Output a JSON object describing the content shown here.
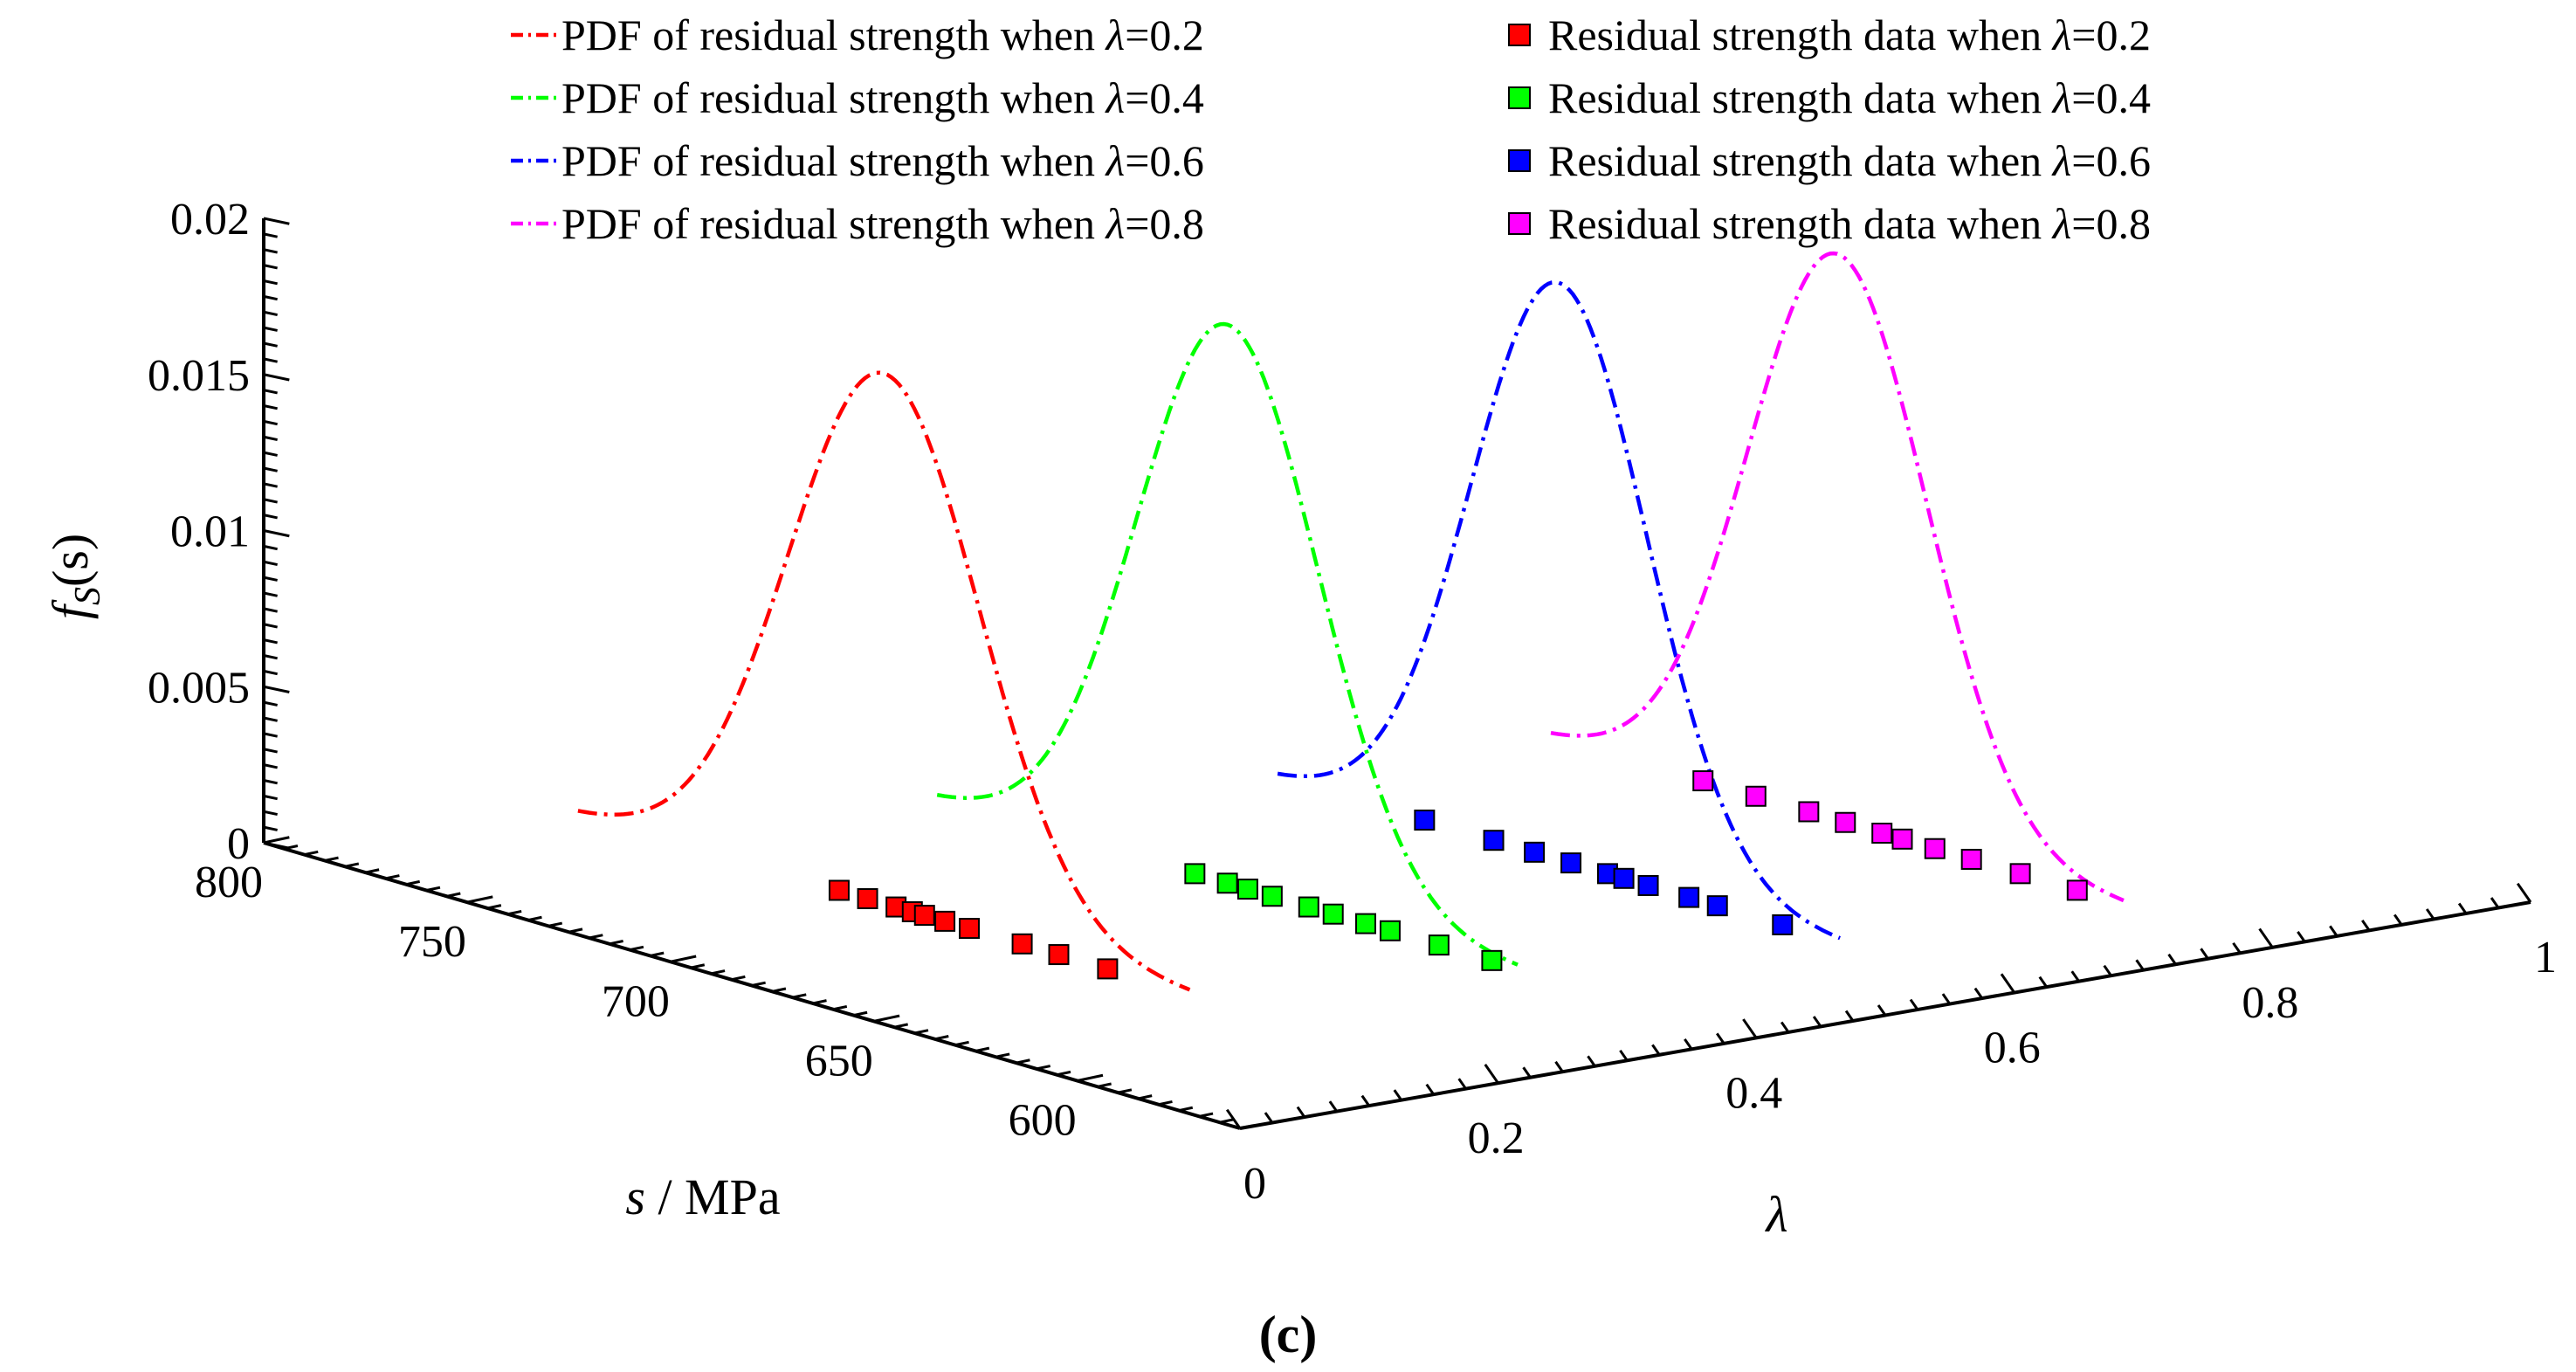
{
  "chart_data": {
    "type": "line",
    "view": "3d",
    "caption": "(c)",
    "axes": {
      "x": {
        "label_italic": "λ",
        "label_rest": "",
        "range": [
          0,
          1
        ],
        "ticks": [
          0,
          0.2,
          0.4,
          0.6,
          0.8,
          1
        ],
        "tick_labels": [
          "0",
          "0.2",
          "0.4",
          "0.6",
          "0.8",
          "1"
        ]
      },
      "y": {
        "label_italic": "s",
        "label_rest": " / MPa",
        "range": [
          560,
          800
        ],
        "ticks": [
          600,
          650,
          700,
          750,
          800
        ],
        "tick_labels": [
          "600",
          "650",
          "700",
          "750",
          "800"
        ]
      },
      "z": {
        "label_f": "f",
        "label_sub": "S",
        "label_rest": "(s)",
        "range": [
          0,
          0.02
        ],
        "ticks": [
          0,
          0.005,
          0.01,
          0.015,
          0.02
        ],
        "tick_labels": [
          "0",
          "0.005",
          "0.01",
          "0.015",
          "0.02"
        ]
      }
    },
    "legend": {
      "position": "top",
      "lambda_symbol": "λ",
      "pdf_prefix": "PDF of residual strength when ",
      "data_prefix": "Residual strength data when "
    },
    "series": [
      {
        "lambda": 0.2,
        "lambda_text": "=0.2",
        "color": "#ff0000",
        "pdf": {
          "mu": 711,
          "sigma": 23.5
        },
        "data_s": [
          722,
          715,
          708,
          704,
          701,
          696,
          690,
          677,
          668,
          656
        ]
      },
      {
        "lambda": 0.4,
        "lambda_text": "=0.4",
        "color": "#00ff00",
        "pdf": {
          "mu": 690,
          "sigma": 22.3
        },
        "data_s": [
          698,
          690,
          685,
          679,
          670,
          664,
          656,
          650,
          638,
          625
        ]
      },
      {
        "lambda": 0.6,
        "lambda_text": "=0.6",
        "color": "#0000ff",
        "pdf": {
          "mu": 672,
          "sigma": 21.6
        },
        "data_s": [
          705,
          688,
          678,
          669,
          660,
          656,
          650,
          640,
          633,
          617
        ]
      },
      {
        "lambda": 0.8,
        "lambda_text": "=0.8",
        "color": "#ff00ff",
        "pdf": {
          "mu": 667,
          "sigma": 22.0
        },
        "data_s": [
          700,
          687,
          674,
          665,
          656,
          651,
          643,
          634,
          622,
          608
        ]
      }
    ]
  }
}
